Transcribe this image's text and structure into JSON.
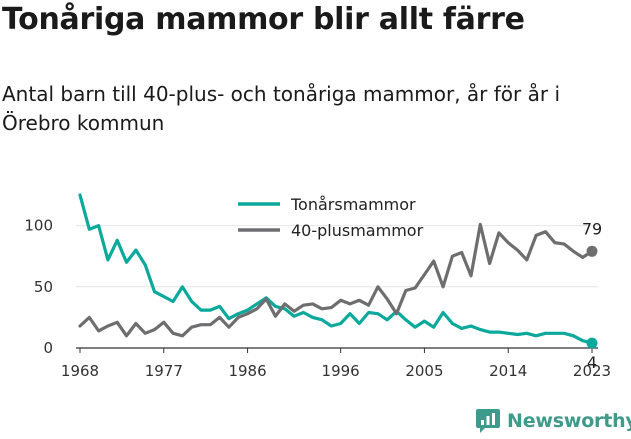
{
  "header": {
    "title": "Tonåriga mammor blir allt färre",
    "subtitle": "Antal barn till 40-plus- och tonåriga mammor, år för år i Örebro kommun"
  },
  "brand": {
    "name": "Newsworthy",
    "icon": "newsworthy-logo-icon",
    "color": "#3e9a8a"
  },
  "chart_data": {
    "type": "line",
    "x_ticks": [
      1968,
      1977,
      1986,
      1996,
      2005,
      2014,
      2023
    ],
    "y_ticks": [
      0,
      50,
      100
    ],
    "xlim": [
      1968,
      2023
    ],
    "ylim": [
      0,
      125
    ],
    "grid": true,
    "legend_position": "top-center",
    "series": [
      {
        "name": "Tonårsmammor",
        "color": "#0aa99b",
        "values": [
          125,
          97,
          100,
          72,
          88,
          70,
          80,
          68,
          46,
          42,
          38,
          50,
          38,
          31,
          31,
          34,
          24,
          28,
          31,
          36,
          41,
          34,
          32,
          26,
          29,
          25,
          23,
          18,
          20,
          28,
          20,
          29,
          28,
          23,
          30,
          23,
          17,
          22,
          17,
          29,
          20,
          16,
          18,
          15,
          13,
          13,
          12,
          11,
          12,
          10,
          12,
          12,
          12,
          10,
          6,
          4
        ],
        "end_label": "4"
      },
      {
        "name": "40-plusmammor",
        "color": "#6e6e70",
        "values": [
          18,
          25,
          14,
          18,
          21,
          10,
          20,
          12,
          15,
          21,
          12,
          10,
          17,
          19,
          19,
          25,
          17,
          25,
          28,
          32,
          40,
          26,
          36,
          30,
          35,
          36,
          32,
          33,
          39,
          36,
          39,
          35,
          50,
          40,
          28,
          47,
          49,
          60,
          71,
          50,
          75,
          78,
          59,
          101,
          69,
          94,
          86,
          80,
          72,
          92,
          95,
          86,
          85,
          79,
          74,
          79
        ],
        "end_label": "79"
      }
    ]
  }
}
